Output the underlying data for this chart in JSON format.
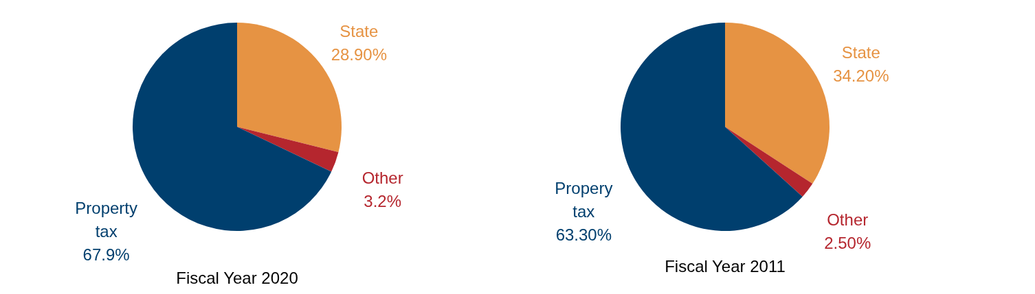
{
  "chart_data": [
    {
      "type": "pie",
      "title": "Fiscal Year 2020",
      "categories": [
        "State",
        "Other",
        "Property tax"
      ],
      "values": [
        28.9,
        3.2,
        67.9
      ],
      "colors": [
        "#e69343",
        "#b5262e",
        "#003f6e"
      ],
      "value_labels": [
        "28.90%",
        "3.2%",
        "67.9%"
      ]
    },
    {
      "type": "pie",
      "title": "Fiscal Year 2011",
      "categories": [
        "State",
        "Other",
        "Propery tax"
      ],
      "values": [
        34.2,
        2.5,
        63.3
      ],
      "colors": [
        "#e69343",
        "#b5262e",
        "#003f6e"
      ],
      "value_labels": [
        "34.20%",
        "2.50%",
        "63.30%"
      ]
    }
  ]
}
